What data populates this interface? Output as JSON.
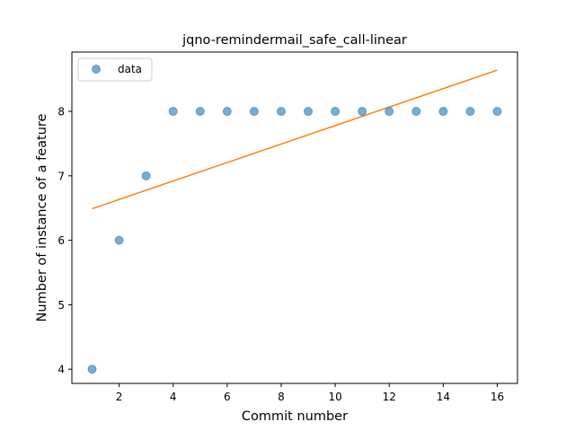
{
  "chart_data": {
    "type": "scatter",
    "title": "jqno-remindermail_safe_call-linear",
    "xlabel": "Commit number",
    "ylabel": "Number of instance of a feature",
    "xlim": [
      0.25,
      16.75
    ],
    "ylim": [
      3.78,
      8.92
    ],
    "xticks": [
      2,
      4,
      6,
      8,
      10,
      12,
      14,
      16
    ],
    "yticks": [
      4,
      5,
      6,
      7,
      8
    ],
    "grid": false,
    "legend": {
      "position": "top-left",
      "entries": [
        "data"
      ]
    },
    "series": [
      {
        "name": "data",
        "kind": "scatter",
        "color": "#1f77b4",
        "x": [
          1,
          2,
          3,
          4,
          5,
          6,
          7,
          8,
          9,
          10,
          11,
          12,
          13,
          14,
          15,
          16
        ],
        "y": [
          4,
          6,
          7,
          8,
          8,
          8,
          8,
          8,
          8,
          8,
          8,
          8,
          8,
          8,
          8,
          8
        ]
      },
      {
        "kind": "line",
        "color": "#ff7f0e",
        "x": [
          1,
          16
        ],
        "y": [
          6.49,
          8.64
        ]
      }
    ]
  }
}
